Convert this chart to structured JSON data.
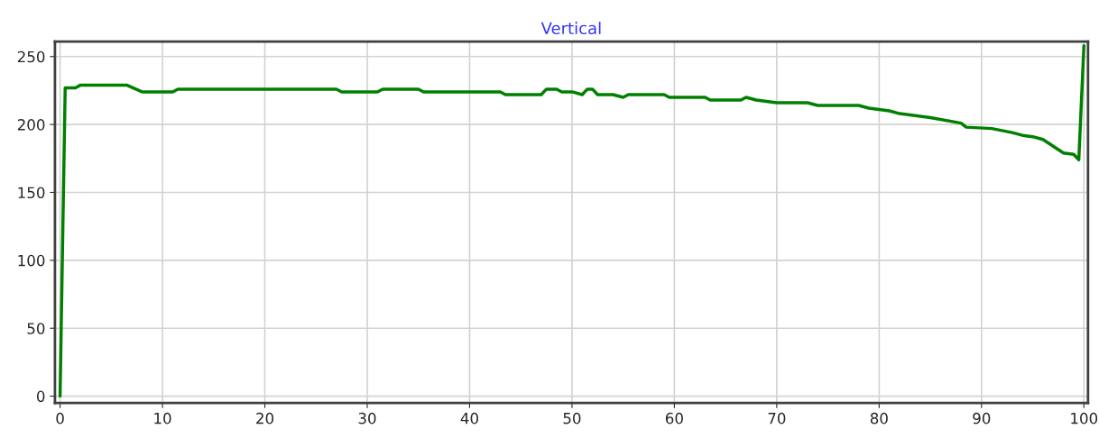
{
  "chart_data": {
    "type": "line",
    "title": "Vertical",
    "x": [
      0,
      0.5,
      1.5,
      2,
      6.5,
      8,
      11,
      11.5,
      27,
      27.5,
      31,
      31.5,
      35,
      35.5,
      43,
      43.5,
      47,
      47.5,
      48.5,
      49,
      50,
      51,
      51.5,
      52,
      52.5,
      54,
      55,
      55.5,
      59,
      59.5,
      63,
      63.5,
      66.5,
      67,
      68,
      70,
      73,
      74,
      78,
      79,
      81,
      82,
      85,
      88,
      88.5,
      91,
      93,
      94,
      95,
      96,
      97,
      98,
      99,
      99.5,
      100
    ],
    "series": [
      {
        "color": "#008000",
        "values": [
          0,
          227,
          227,
          229,
          229,
          224,
          224,
          226,
          226,
          224,
          224,
          226,
          226,
          224,
          224,
          222,
          222,
          226,
          226,
          224,
          224,
          222,
          226,
          226,
          222,
          222,
          220,
          222,
          222,
          220,
          220,
          218,
          218,
          220,
          218,
          216,
          216,
          214,
          214,
          212,
          210,
          208,
          205,
          201,
          198,
          197,
          194,
          192,
          191,
          189,
          184,
          179,
          178,
          174,
          258
        ]
      }
    ],
    "xlim": [
      -0.5,
      100.4
    ],
    "ylim": [
      -5,
      261
    ],
    "xticks": [
      0,
      10,
      20,
      30,
      40,
      50,
      60,
      70,
      80,
      90,
      100
    ],
    "yticks": [
      0,
      50,
      100,
      150,
      200,
      250
    ],
    "grid": true,
    "marker": "none",
    "line_style": "solid"
  }
}
